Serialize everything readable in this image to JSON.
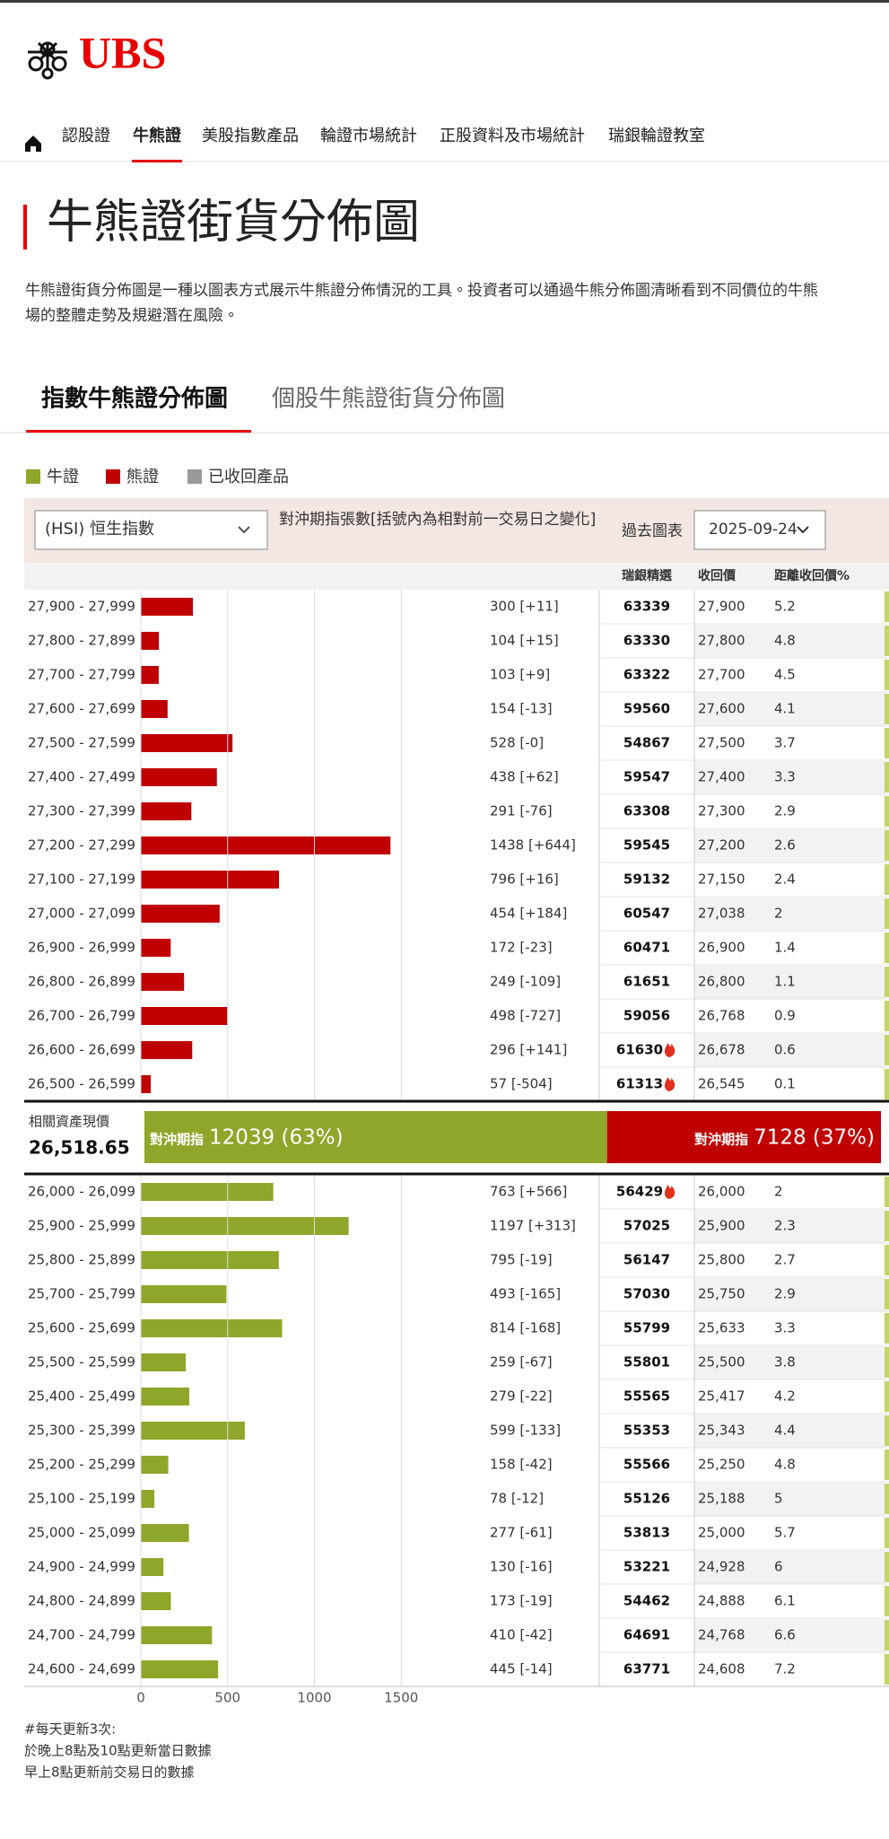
{
  "logo": "UBS",
  "nav": [
    "認股證",
    "牛熊證",
    "美股指數產品",
    "輪證市場統計",
    "正股資料及市場統計",
    "瑞銀輪證教室"
  ],
  "title": "牛熊證街貨分佈圖",
  "description": [
    "牛熊證街貨分佈圖是一種以圖表方式展示牛熊證分佈情況的工具。投資者可以通過牛熊分佈圖清晰看到不同價位的牛熊",
    "場的整體走勢及規避潛在風險。"
  ],
  "tabs": [
    "指數牛熊證分佈圖",
    "個股牛熊證街貨分佈圖"
  ],
  "legend": [
    {
      "label": "已收回產品",
      "color": "#999999"
    }
  ],
  "filter": {
    "index": "(HSI) 恒生指數",
    "note": "對沖期指張數[括號內為相對前一交易日之變化]",
    "history_label": "過去圖表",
    "date": "2025-09-24"
  },
  "columns": [
    "瑞銀精選",
    "收回價",
    "距離收回價%"
  ],
  "summary": {
    "label": "相關資產現價",
    "price": "26,518.65",
    "bull": {
      "label": "對沖期指",
      "value": 12039,
      "value_label": "12039 (63%)",
      "color": "#8ea62a"
    },
    "bear": {
      "label": "對沖期指",
      "value": 7128,
      "value_label": "7128 (37%)",
      "color": "#c00000"
    }
  },
  "chart_data": [
    {
      "type": "bar",
      "categories": [
        "27,900 - 27,999",
        "27,800 - 27,899",
        "27,700 - 27,799",
        "27,600 - 27,699",
        "27,500 - 27,599",
        "27,400 - 27,499",
        "27,300 - 27,399",
        "27,200 - 27,299",
        "27,100 - 27,199",
        "27,000 - 27,099",
        "26,900 - 26,999",
        "26,800 - 26,899",
        "26,700 - 26,799",
        "26,600 - 26,699",
        "26,500 - 26,599"
      ],
      "series": [
        {
          "name": "熊證",
          "color": "#c00000",
          "values": [
            300,
            104,
            103,
            154,
            528,
            438,
            291,
            1438,
            796,
            454,
            172,
            249,
            498,
            296,
            57
          ],
          "value_labels": [
            "300 [+11]",
            "104 [+15]",
            "103 [+9]",
            "154 [-13]",
            "528 [-0]",
            "438 [+62]",
            "291 [-76]",
            "1438 [+644]",
            "796 [+16]",
            "454 [+184]",
            "172 [-23]",
            "249 [-109]",
            "498 [-727]",
            "296 [+141]",
            "57 [-504]"
          ]
        }
      ],
      "codes": [
        63339,
        63330,
        63322,
        59560,
        54867,
        59547,
        63308,
        59545,
        59132,
        60547,
        60471,
        61651,
        59056,
        61630,
        61313
      ],
      "call_prices": [
        "27,900",
        "27,800",
        "27,700",
        "27,600",
        "27,500",
        "27,400",
        "27,300",
        "27,200",
        "27,150",
        "27,038",
        "26,900",
        "26,800",
        "26,768",
        "26,678",
        "26,545"
      ],
      "distance": [
        5.2,
        4.8,
        4.5,
        4.1,
        3.7,
        3.3,
        2.9,
        2.6,
        2.4,
        2,
        1.4,
        1.1,
        0.9,
        0.6,
        0.1
      ],
      "fire": [
        false,
        false,
        false,
        false,
        false,
        false,
        false,
        false,
        false,
        false,
        false,
        false,
        false,
        true,
        true
      ],
      "xlim": [
        0,
        2000
      ]
    },
    {
      "type": "bar",
      "categories": [
        "26,000 - 26,099",
        "25,900 - 25,999",
        "25,800 - 25,899",
        "25,700 - 25,799",
        "25,600 - 25,699",
        "25,500 - 25,599",
        "25,400 - 25,499",
        "25,300 - 25,399",
        "25,200 - 25,299",
        "25,100 - 25,199",
        "25,000 - 25,099",
        "24,900 - 24,999",
        "24,800 - 24,899",
        "24,700 - 24,799",
        "24,600 - 24,699"
      ],
      "series": [
        {
          "name": "牛證",
          "color": "#8ea62a",
          "values": [
            763,
            1197,
            795,
            493,
            814,
            259,
            279,
            599,
            158,
            78,
            277,
            130,
            173,
            410,
            445
          ],
          "value_labels": [
            "763 [+566]",
            "1197 [+313]",
            "795 [-19]",
            "493 [-165]",
            "814 [-168]",
            "259 [-67]",
            "279 [-22]",
            "599 [-133]",
            "158 [-42]",
            "78 [-12]",
            "277 [-61]",
            "130 [-16]",
            "173 [-19]",
            "410 [-42]",
            "445 [-14]"
          ]
        }
      ],
      "codes": [
        56429,
        57025,
        56147,
        57030,
        55799,
        55801,
        55565,
        55353,
        55566,
        55126,
        53813,
        53221,
        54462,
        64691,
        63771
      ],
      "call_prices": [
        "26,000",
        "25,900",
        "25,800",
        "25,750",
        "25,633",
        "25,500",
        "25,417",
        "25,343",
        "25,250",
        "25,188",
        "25,000",
        "24,928",
        "24,888",
        "24,768",
        "24,608"
      ],
      "distance": [
        2,
        2.3,
        2.7,
        2.9,
        3.3,
        3.8,
        4.2,
        4.4,
        4.8,
        5,
        5.7,
        6,
        6.1,
        6.6,
        7.2
      ],
      "fire": [
        true,
        false,
        false,
        false,
        false,
        false,
        false,
        false,
        false,
        false,
        false,
        false,
        false,
        false,
        false
      ],
      "xlim": [
        0,
        2000
      ],
      "xticks": [
        0,
        500,
        1000,
        1500
      ]
    }
  ],
  "notes": [
    "#每天更新3次:",
    "於晚上8點及10點更新當日數據",
    "早上8點更新前交易日的數據"
  ]
}
